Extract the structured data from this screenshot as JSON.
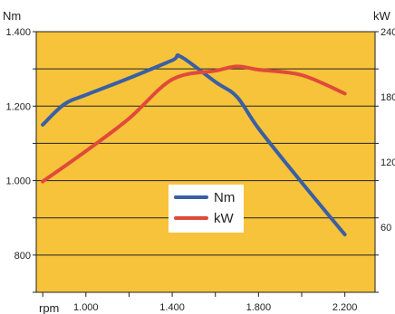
{
  "chart_data": {
    "type": "line",
    "x_unit_label": "rpm",
    "x_ticks": [
      "1.000",
      "1.400",
      "1.800",
      "2.200"
    ],
    "xlim": [
      770,
      2340
    ],
    "y_left": {
      "unit_label": "Nm",
      "ticks": [
        "800",
        "1.000",
        "1.200",
        "1.400"
      ],
      "ylim": [
        700,
        1400
      ]
    },
    "y_right": {
      "unit_label": "kW",
      "ticks": [
        "60",
        "120",
        "180",
        "240"
      ],
      "ylim": [
        0,
        240
      ]
    },
    "grid": true,
    "background_color": "#f6c33a",
    "legend_position": "center",
    "series": [
      {
        "name": "Nm",
        "axis": "left",
        "color": "#3a5fa5",
        "x": [
          800,
          900,
          1000,
          1200,
          1400,
          1440,
          1600,
          1700,
          1800,
          2000,
          2200
        ],
        "y": [
          1150,
          1205,
          1230,
          1275,
          1323,
          1333,
          1265,
          1225,
          1140,
          995,
          855
        ]
      },
      {
        "name": "kW",
        "axis": "right",
        "color": "#e04a3a",
        "x": [
          800,
          1000,
          1200,
          1400,
          1600,
          1700,
          1800,
          2000,
          2200
        ],
        "y": [
          102,
          130,
          160,
          196,
          204,
          208,
          205,
          200,
          183
        ]
      }
    ]
  }
}
